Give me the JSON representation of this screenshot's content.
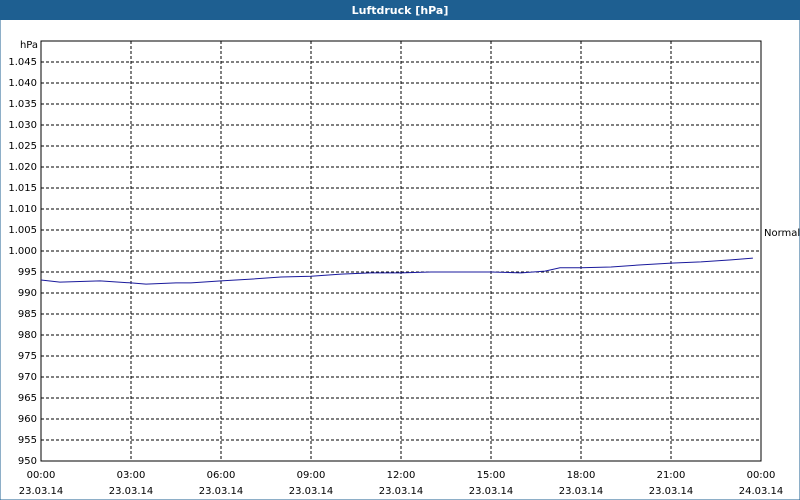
{
  "chart_data": {
    "type": "line",
    "title": "Luftdruck [hPa]",
    "y_label": "hPa",
    "annotation": "Normal",
    "xlim": [
      0,
      24
    ],
    "xticks": [
      {
        "value": 0,
        "label": "00:00"
      },
      {
        "value": 3,
        "label": "03:00"
      },
      {
        "value": 6,
        "label": "06:00"
      },
      {
        "value": 9,
        "label": "09:00"
      },
      {
        "value": 12,
        "label": "12:00"
      },
      {
        "value": 15,
        "label": "15:00"
      },
      {
        "value": 18,
        "label": "18:00"
      },
      {
        "value": 21,
        "label": "21:00"
      },
      {
        "value": 24,
        "label": "00:00"
      }
    ],
    "xtick_dates": [
      "23.03.14",
      "23.03.14",
      "23.03.14",
      "23.03.14",
      "23.03.14",
      "23.03.14",
      "23.03.14",
      "23.03.14",
      "24.03.14"
    ],
    "ylim": [
      950,
      1050
    ],
    "yticks": [
      950,
      955,
      960,
      965,
      970,
      975,
      980,
      985,
      990,
      995,
      {
        "value": 1000,
        "label": "1.000"
      },
      {
        "value": 1005,
        "label": "1.005"
      },
      {
        "value": 1010,
        "label": "1.010"
      },
      {
        "value": 1015,
        "label": "1.015"
      },
      {
        "value": 1020,
        "label": "1.020"
      },
      {
        "value": 1025,
        "label": "1.025"
      },
      {
        "value": 1030,
        "label": "1.030"
      },
      {
        "value": 1035,
        "label": "1.035"
      },
      {
        "value": 1040,
        "label": "1.040"
      },
      {
        "value": 1045,
        "label": "1.045"
      }
    ],
    "grid": true,
    "series": [
      {
        "color": "#1a1a9c",
        "x": [
          0,
          0.63,
          1.97,
          3,
          3.5,
          4.5,
          5,
          6,
          7,
          8,
          9,
          10,
          11,
          12,
          13,
          14,
          15,
          16,
          16.8,
          17.3,
          18,
          19,
          20,
          21,
          22,
          23,
          23.73
        ],
        "values": [
          993.1,
          992.6,
          992.9,
          992.4,
          992.1,
          992.4,
          992.4,
          992.9,
          993.3,
          993.8,
          994.0,
          994.5,
          994.8,
          994.8,
          995.0,
          995.0,
          995.0,
          994.8,
          995.2,
          996.0,
          996.0,
          996.2,
          996.7,
          997.1,
          997.4,
          997.9,
          998.3
        ]
      }
    ]
  }
}
